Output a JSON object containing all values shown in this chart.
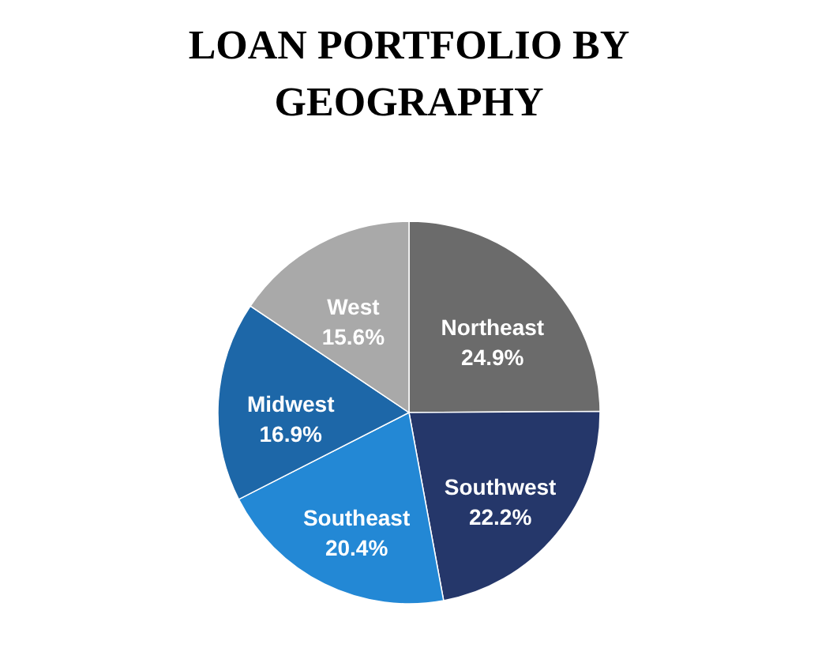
{
  "chart_data": {
    "type": "pie",
    "title": "LOAN PORTFOLIO BY GEOGRAPHY",
    "categories": [
      "Northeast",
      "Southwest",
      "Southeast",
      "Midwest",
      "West"
    ],
    "values": [
      24.9,
      22.2,
      20.4,
      16.9,
      15.6
    ],
    "value_labels": [
      "24.9%",
      "22.2%",
      "20.4%",
      "16.9%",
      "15.6%"
    ],
    "colors": [
      "#6b6b6b",
      "#25376a",
      "#2388d5",
      "#1d67a8",
      "#a9a9a9"
    ],
    "legend": false
  }
}
